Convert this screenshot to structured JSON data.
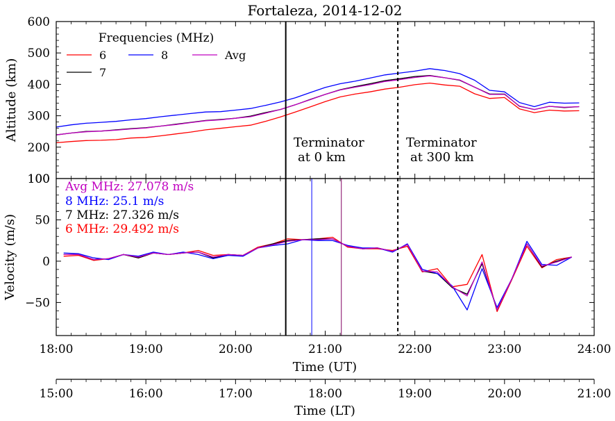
{
  "chart_data": {
    "type": "line",
    "title": "Fortaleza, 2014-12-02",
    "colors": {
      "f6": "#ff0000",
      "f7": "#000000",
      "f8": "#0000ff",
      "avg": "#c000c0"
    },
    "top_panel": {
      "ylabel": "Altitude (km)",
      "ylim": [
        100,
        600
      ],
      "yticks": [
        "100",
        "200",
        "300",
        "400",
        "500",
        "600"
      ],
      "legend_title": "Frequencies (MHz)",
      "legend_placement": "top-left",
      "legend": [
        {
          "label": "6",
          "color": "#ff0000"
        },
        {
          "label": "8",
          "color": "#0000ff"
        },
        {
          "label": "Avg",
          "color": "#c000c0"
        },
        {
          "label": "7",
          "color": "#000000"
        }
      ],
      "x": [
        18.0,
        18.167,
        18.333,
        18.5,
        18.667,
        18.833,
        19.0,
        19.167,
        19.333,
        19.5,
        19.667,
        19.833,
        20.0,
        20.167,
        20.333,
        20.5,
        20.667,
        20.833,
        21.0,
        21.167,
        21.333,
        21.5,
        21.667,
        21.833,
        22.0,
        22.167,
        22.333,
        22.5,
        22.667,
        22.833,
        23.0,
        23.167,
        23.333,
        23.5,
        23.667,
        23.833
      ],
      "series": [
        {
          "name": "6",
          "color": "#ff0000",
          "values": [
            214,
            218,
            221,
            222,
            224,
            229,
            231,
            236,
            242,
            248,
            255,
            260,
            265,
            270,
            282,
            296,
            312,
            328,
            345,
            360,
            369,
            376,
            385,
            391,
            399,
            404,
            398,
            394,
            370,
            355,
            358,
            322,
            310,
            318,
            315,
            316
          ]
        },
        {
          "name": "7",
          "color": "#000000",
          "values": [
            239,
            245,
            250,
            251,
            255,
            259,
            262,
            267,
            273,
            279,
            285,
            288,
            292,
            299,
            310,
            320,
            335,
            352,
            368,
            383,
            393,
            402,
            412,
            418,
            425,
            428,
            421,
            413,
            391,
            369,
            369,
            330,
            320,
            330,
            326,
            329
          ]
        },
        {
          "name": "8",
          "color": "#0000ff",
          "values": [
            264,
            271,
            276,
            279,
            282,
            287,
            291,
            297,
            302,
            307,
            312,
            313,
            318,
            323,
            333,
            344,
            357,
            374,
            390,
            402,
            410,
            420,
            430,
            436,
            442,
            450,
            444,
            434,
            413,
            381,
            376,
            342,
            329,
            343,
            340,
            341
          ]
        },
        {
          "name": "Avg",
          "color": "#c000c0",
          "values": [
            239,
            245,
            249,
            251,
            254,
            258,
            261,
            267,
            272,
            278,
            284,
            287,
            292,
            297,
            308,
            320,
            335,
            351,
            368,
            382,
            391,
            399,
            409,
            415,
            422,
            427,
            421,
            414,
            391,
            368,
            368,
            331,
            320,
            330,
            327,
            329
          ]
        }
      ],
      "annotations": [
        {
          "text": "Terminator",
          "text2": "at 0 km",
          "x": 21.1
        },
        {
          "text": "Terminator",
          "text2": "at 300 km",
          "x": 22.36
        }
      ]
    },
    "bottom_panel": {
      "ylabel": "Velocity (m/s)",
      "ylim": [
        -90,
        100
      ],
      "yticks": [
        "100",
        "50",
        "0",
        "−50"
      ],
      "speed_labels": [
        {
          "text": "Avg MHz: 27.078 m/s",
          "color": "#c000c0"
        },
        {
          "text": "8 MHz: 25.1 m/s",
          "color": "#0000ff"
        },
        {
          "text": "7 MHz: 27.326 m/s",
          "color": "#000000"
        },
        {
          "text": "6 MHz: 29.492 m/s",
          "color": "#ff0000"
        }
      ],
      "x": [
        18.083,
        18.25,
        18.417,
        18.583,
        18.75,
        18.917,
        19.083,
        19.25,
        19.417,
        19.583,
        19.75,
        19.917,
        20.083,
        20.25,
        20.417,
        20.583,
        20.75,
        20.917,
        21.083,
        21.25,
        21.417,
        21.583,
        21.75,
        21.917,
        22.083,
        22.25,
        22.417,
        22.583,
        22.75,
        22.917,
        23.083,
        23.25,
        23.417,
        23.583,
        23.75
      ],
      "series": [
        {
          "name": "6",
          "color": "#ff0000",
          "values": [
            6,
            7,
            1,
            3,
            8,
            4,
            10,
            8,
            10,
            13,
            7,
            8,
            7,
            17,
            21,
            27,
            26,
            27,
            29,
            17,
            15,
            15,
            13,
            18,
            -13,
            -9,
            -31,
            -28,
            8,
            -61,
            -22,
            18,
            -8,
            2,
            5
          ]
        },
        {
          "name": "7",
          "color": "#000000",
          "values": [
            8,
            8,
            2,
            3,
            8,
            4,
            10,
            8,
            10,
            11,
            4,
            8,
            7,
            16,
            21,
            25,
            26,
            27,
            27,
            18,
            15,
            16,
            12,
            20,
            -12,
            -15,
            -32,
            -40,
            -3,
            -59,
            -21,
            21,
            -7,
            0,
            5
          ]
        },
        {
          "name": "8",
          "color": "#0000ff",
          "values": [
            10,
            9,
            4,
            2,
            8,
            6,
            11,
            8,
            11,
            8,
            3,
            7,
            6,
            16,
            19,
            21,
            26,
            25,
            25,
            19,
            16,
            16,
            11,
            21,
            -10,
            -15,
            -30,
            -59,
            -9,
            -56,
            -21,
            24,
            -4,
            -5,
            5
          ]
        },
        {
          "name": "Avg",
          "color": "#c000c0",
          "values": [
            8,
            8,
            2,
            3,
            8,
            5,
            10,
            8,
            10,
            11,
            5,
            8,
            7,
            16,
            20,
            24,
            26,
            26,
            27,
            18,
            15,
            16,
            12,
            20,
            -12,
            -13,
            -31,
            -42,
            -1,
            -59,
            -21,
            21,
            -6,
            -1,
            5
          ]
        }
      ],
      "vlines": [
        {
          "x": 20.85,
          "color": "#0000ff"
        },
        {
          "x": 21.18,
          "color": "#800060"
        }
      ]
    },
    "terminator_lines": [
      {
        "x": 20.56,
        "style": "solid"
      },
      {
        "x": 21.81,
        "style": "dashed"
      }
    ],
    "xaxis_ut": {
      "xlabel": "Time (UT)",
      "range": [
        18,
        24
      ],
      "ticks": [
        "18:00",
        "19:00",
        "20:00",
        "21:00",
        "22:00",
        "23:00",
        "24:00"
      ]
    },
    "xaxis_lt": {
      "xlabel": "Time (LT)",
      "range": [
        15,
        21
      ],
      "ticks": [
        "15:00",
        "16:00",
        "17:00",
        "18:00",
        "19:00",
        "20:00",
        "21:00"
      ]
    }
  }
}
